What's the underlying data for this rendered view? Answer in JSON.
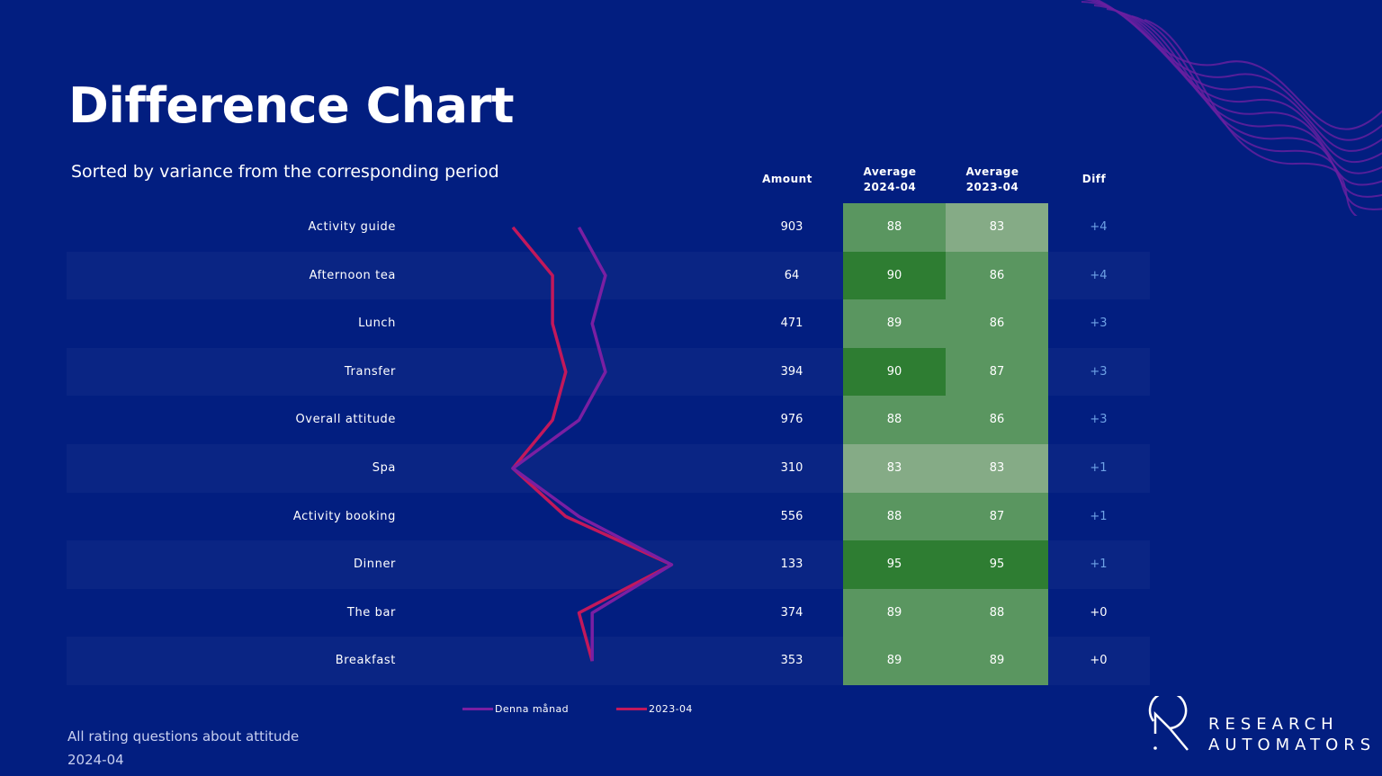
{
  "title": "Difference Chart",
  "subtitle": "Sorted by variance from the corresponding period",
  "headers": {
    "amount": "Amount",
    "avg_current": [
      "Average",
      "2024-04"
    ],
    "avg_prev": [
      "Average",
      "2023-04"
    ],
    "diff": "Diff"
  },
  "chart_data": {
    "type": "line",
    "orientation": "vertical-categories",
    "categories": [
      "Activity guide",
      "Afternoon tea",
      "Lunch",
      "Transfer",
      "Overall attitude",
      "Spa",
      "Activity booking",
      "Dinner",
      "The bar",
      "Breakfast"
    ],
    "series": [
      {
        "name": "Denna månad",
        "color": "#7a1fa2",
        "values": [
          88,
          90,
          89,
          90,
          88,
          83,
          88,
          95,
          89,
          89
        ]
      },
      {
        "name": "2023-04",
        "color": "#c2185b",
        "values": [
          83,
          86,
          86,
          87,
          86,
          83,
          87,
          95,
          88,
          89
        ]
      }
    ],
    "amount": [
      903,
      64,
      471,
      394,
      976,
      310,
      556,
      133,
      374,
      353
    ],
    "diff": [
      "+4",
      "+4",
      "+3",
      "+3",
      "+3",
      "+1",
      "+1",
      "+1",
      "+0",
      "+0"
    ]
  },
  "footer": {
    "line1": "All rating questions about attitude",
    "line2": "2024-04"
  },
  "logo": {
    "line1": "RESEARCH",
    "line2": "AUTOMATORS"
  },
  "colors": {
    "background": "#021e80",
    "diff_positive": "#6fa2e6"
  }
}
